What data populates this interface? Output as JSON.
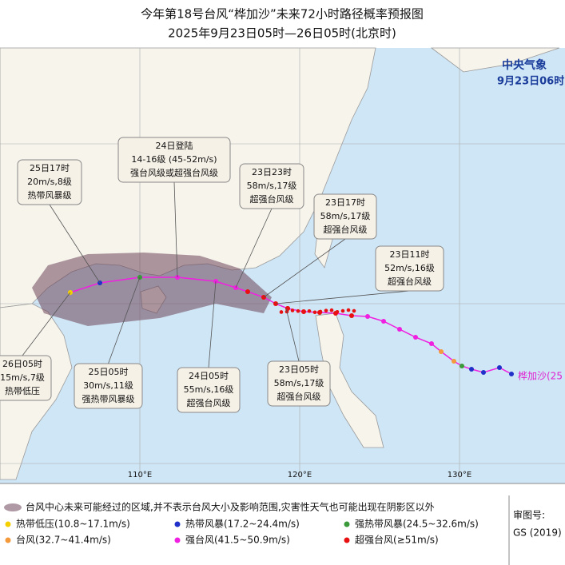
{
  "header": {
    "title": "今年第18号台风“桦加沙”未来72小时路径概率预报图",
    "subtitle": "2025年9月23日05时—26日05时(北京时)"
  },
  "agency": {
    "name": "中央气象",
    "time": "9月23日06时"
  },
  "callouts": [
    {
      "lines": [
        "25日17时",
        "20m/s,8级",
        "热带风暴级"
      ]
    },
    {
      "lines": [
        "24日登陆",
        "14-16级 (45-52m/s)",
        "强台风级或超强台风级"
      ]
    },
    {
      "lines": [
        "23日23时",
        "58m/s,17级",
        "超强台风级"
      ]
    },
    {
      "lines": [
        "23日17时",
        "58m/s,17级",
        "超强台风级"
      ]
    },
    {
      "lines": [
        "23日11时",
        "52m/s,16级",
        "超强台风级"
      ]
    },
    {
      "lines": [
        "23日05时",
        "58m/s,17级",
        "超强台风级"
      ]
    },
    {
      "lines": [
        "24日05时",
        "55m/s,16级",
        "超强台风级"
      ]
    },
    {
      "lines": [
        "25日05时",
        "30m/s,11级",
        "强热带风暴级"
      ]
    },
    {
      "lines": [
        "26日05时",
        "15m/s,7级",
        "热带低压"
      ]
    }
  ],
  "axis_labels": [
    "110°E",
    "120°E",
    "130°E"
  ],
  "typhoon_label": "桦加沙(25",
  "legend": {
    "area": "台风中心未来可能经过的区域,并不表示台风大小及影响范围,灾害性天气也可能出现在阴影区以外",
    "items": [
      {
        "label": "热带低压(10.8~17.1m/s)",
        "color": "#f5d000"
      },
      {
        "label": "热带风暴(17.2~24.4m/s)",
        "color": "#2030c8"
      },
      {
        "label": "强热带风暴(24.5~32.6m/s)",
        "color": "#3a9a3a"
      },
      {
        "label": "台风(32.7~41.4m/s)",
        "color": "#f59a3a"
      },
      {
        "label": "强台风(41.5~50.9m/s)",
        "color": "#f020e0"
      },
      {
        "label": "超强台风(≥51m/s)",
        "color": "#e81010"
      }
    ]
  },
  "approval": {
    "label": "审图号:",
    "number": "GS (2019)"
  }
}
